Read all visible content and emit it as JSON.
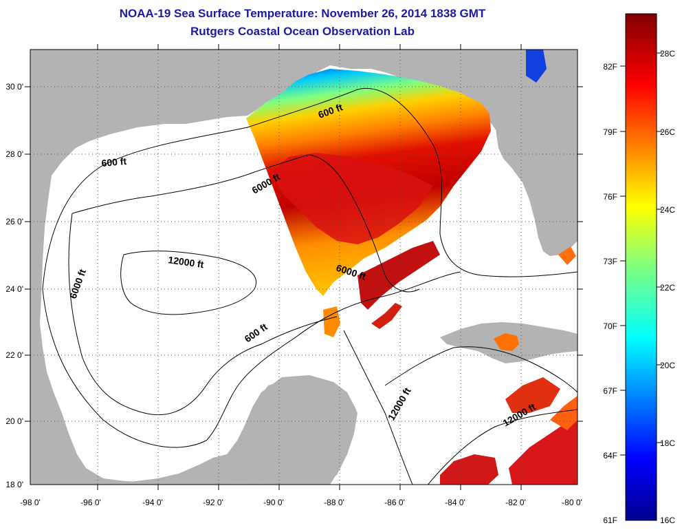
{
  "header": {
    "title": "NOAA-19 Sea Surface Temperature:  November 26, 2014 1838 GMT",
    "subtitle": "Rutgers Coastal Ocean Observation Lab"
  },
  "map": {
    "lon_ticks": [
      "-98 0'",
      "-96 0'",
      "-94 0'",
      "-92 0'",
      "-90 0'",
      "-88 0'",
      "-86 0'",
      "-84 0'",
      "-82 0'",
      "-80 0'"
    ],
    "lat_ticks": [
      "30 0'",
      "28 0'",
      "26 0'",
      "24 0'",
      "22 0'",
      "20 0'",
      "18 0'"
    ],
    "depth_labels": [
      "600 ft",
      "600 ft",
      "600 ft",
      "6000 ft",
      "6000 ft",
      "6000 ft",
      "12000 ft",
      "12000 ft",
      "12000 ft"
    ],
    "colors": {
      "land": "#b3b3b3",
      "water_nodata": "#ffffff",
      "grid": "#555555"
    }
  },
  "colorbar": {
    "fahrenheit_labels": [
      "82F",
      "79F",
      "76F",
      "73F",
      "70F",
      "67F",
      "64F",
      "61F"
    ],
    "celsius_labels": [
      "28C",
      "26C",
      "24C",
      "22C",
      "20C",
      "18C",
      "16C"
    ],
    "range_c": [
      16,
      29.5
    ],
    "colormap": "jet"
  }
}
